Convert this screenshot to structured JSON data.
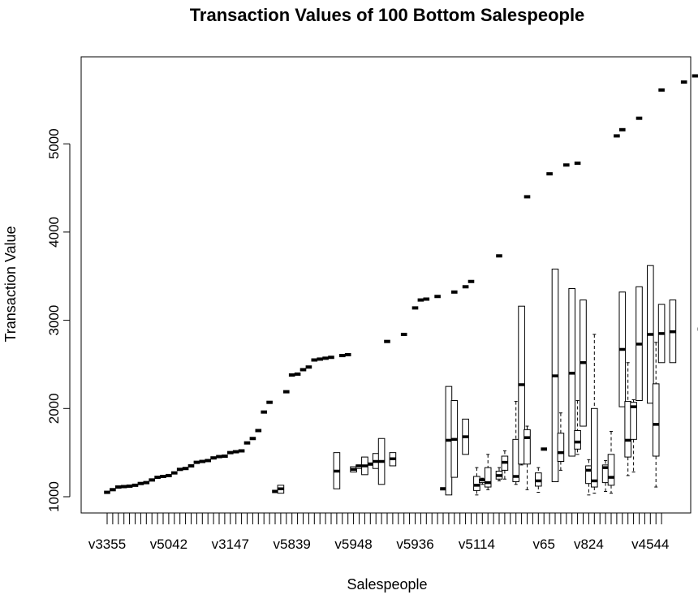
{
  "chart_data": {
    "type": "boxplot",
    "title": "Transaction Values of 100 Bottom Salespeople",
    "xlabel": "Salespeople",
    "ylabel": "Transaction Value",
    "ylim": [
      900,
      5850
    ],
    "yticks": [
      1000,
      2000,
      3000,
      4000,
      5000
    ],
    "n_categories": 100,
    "x_tick_labels": [
      {
        "index": 1,
        "label": "v3355"
      },
      {
        "index": 12,
        "label": "v5042"
      },
      {
        "index": 23,
        "label": "v3147"
      },
      {
        "index": 34,
        "label": "v5839"
      },
      {
        "index": 45,
        "label": "v5948"
      },
      {
        "index": 56,
        "label": "v5936"
      },
      {
        "index": 67,
        "label": "v5114"
      },
      {
        "index": 79,
        "label": "v65"
      },
      {
        "index": 87,
        "label": "v824"
      },
      {
        "index": 98,
        "label": "v4544"
      }
    ],
    "single_points": [
      [
        1,
        1050
      ],
      [
        2,
        1080
      ],
      [
        3,
        1110
      ],
      [
        4,
        1115
      ],
      [
        5,
        1120
      ],
      [
        6,
        1130
      ],
      [
        7,
        1150
      ],
      [
        8,
        1160
      ],
      [
        9,
        1190
      ],
      [
        10,
        1220
      ],
      [
        11,
        1230
      ],
      [
        12,
        1240
      ],
      [
        13,
        1270
      ],
      [
        14,
        1310
      ],
      [
        15,
        1320
      ],
      [
        16,
        1350
      ],
      [
        17,
        1390
      ],
      [
        18,
        1400
      ],
      [
        19,
        1410
      ],
      [
        20,
        1440
      ],
      [
        21,
        1455
      ],
      [
        22,
        1460
      ],
      [
        23,
        1500
      ],
      [
        24,
        1510
      ],
      [
        25,
        1520
      ],
      [
        26,
        1610
      ],
      [
        27,
        1660
      ],
      [
        28,
        1750
      ],
      [
        29,
        1960
      ],
      [
        30,
        2070
      ],
      [
        31,
        1060
      ],
      [
        33,
        2190
      ],
      [
        34,
        2380
      ],
      [
        35,
        2390
      ],
      [
        36,
        2440
      ],
      [
        37,
        2470
      ],
      [
        38,
        2550
      ],
      [
        39,
        2560
      ],
      [
        40,
        2570
      ],
      [
        41,
        2580
      ],
      [
        43,
        2600
      ],
      [
        44,
        2610
      ],
      [
        48,
        1370
      ],
      [
        51,
        2760
      ],
      [
        54,
        2840
      ],
      [
        56,
        3140
      ],
      [
        57,
        3230
      ],
      [
        58,
        3240
      ],
      [
        60,
        3270
      ],
      [
        63,
        3320
      ],
      [
        65,
        3380
      ],
      [
        66,
        3440
      ],
      [
        71,
        3730
      ],
      [
        76,
        4400
      ],
      [
        79,
        1540
      ],
      [
        80,
        4660
      ],
      [
        83,
        4760
      ],
      [
        85,
        4780
      ],
      [
        92,
        5090
      ],
      [
        93,
        5160
      ],
      [
        96,
        5290
      ],
      [
        100,
        5610
      ],
      [
        104,
        5700
      ],
      [
        106,
        5770
      ],
      [
        107,
        2900
      ],
      [
        61,
        1090
      ]
    ],
    "boxes": [
      {
        "x": 32,
        "min": 1040,
        "q1": 1040,
        "median": 1090,
        "q3": 1130,
        "max": 1130
      },
      {
        "x": 42,
        "min": 1090,
        "q1": 1090,
        "median": 1290,
        "q3": 1500,
        "max": 1500
      },
      {
        "x": 45,
        "min": 1280,
        "q1": 1280,
        "median": 1310,
        "q3": 1340,
        "max": 1340
      },
      {
        "x": 46,
        "min": 1320,
        "q1": 1320,
        "median": 1350,
        "q3": 1360,
        "max": 1360
      },
      {
        "x": 47,
        "min": 1250,
        "q1": 1250,
        "median": 1350,
        "q3": 1450,
        "max": 1450
      },
      {
        "x": 49,
        "min": 1320,
        "q1": 1320,
        "median": 1400,
        "q3": 1490,
        "max": 1490
      },
      {
        "x": 50,
        "min": 1140,
        "q1": 1140,
        "median": 1400,
        "q3": 1660,
        "max": 1660
      },
      {
        "x": 52,
        "min": 1350,
        "q1": 1350,
        "median": 1430,
        "q3": 1500,
        "max": 1500
      },
      {
        "x": 62,
        "min": 1020,
        "q1": 1020,
        "median": 1640,
        "q3": 2250,
        "max": 2250
      },
      {
        "x": 63,
        "min": 1220,
        "q1": 1220,
        "median": 1650,
        "q3": 2090,
        "max": 2090
      },
      {
        "x": 65,
        "min": 1480,
        "q1": 1480,
        "median": 1680,
        "q3": 1880,
        "max": 1880
      },
      {
        "x": 67,
        "min": 1020,
        "q1": 1070,
        "median": 1130,
        "q3": 1230,
        "max": 1330
      },
      {
        "x": 68,
        "min": 1140,
        "q1": 1160,
        "median": 1190,
        "q3": 1200,
        "max": 1210
      },
      {
        "x": 69,
        "min": 1080,
        "q1": 1110,
        "median": 1160,
        "q3": 1330,
        "max": 1480
      },
      {
        "x": 71,
        "min": 1180,
        "q1": 1200,
        "median": 1240,
        "q3": 1290,
        "max": 1330
      },
      {
        "x": 72,
        "min": 1200,
        "q1": 1300,
        "median": 1390,
        "q3": 1460,
        "max": 1520
      },
      {
        "x": 74,
        "min": 1140,
        "q1": 1170,
        "median": 1230,
        "q3": 1650,
        "max": 2080
      },
      {
        "x": 75,
        "min": 1360,
        "q1": 1370,
        "median": 2270,
        "q3": 3160,
        "max": 3160
      },
      {
        "x": 76,
        "min": 1080,
        "q1": 1370,
        "median": 1670,
        "q3": 1760,
        "max": 1800
      },
      {
        "x": 78,
        "min": 1050,
        "q1": 1120,
        "median": 1180,
        "q3": 1270,
        "max": 1330
      },
      {
        "x": 81,
        "min": 1170,
        "q1": 1170,
        "median": 2370,
        "q3": 3580,
        "max": 3580
      },
      {
        "x": 82,
        "min": 1300,
        "q1": 1400,
        "median": 1500,
        "q3": 1720,
        "max": 1950
      },
      {
        "x": 84,
        "min": 1460,
        "q1": 1460,
        "median": 2400,
        "q3": 3360,
        "max": 3360
      },
      {
        "x": 85,
        "min": 1480,
        "q1": 1540,
        "median": 1620,
        "q3": 1750,
        "max": 2090
      },
      {
        "x": 86,
        "min": 1800,
        "q1": 1800,
        "median": 2520,
        "q3": 3230,
        "max": 3230
      },
      {
        "x": 87,
        "min": 1020,
        "q1": 1150,
        "median": 1300,
        "q3": 1350,
        "max": 1420
      },
      {
        "x": 88,
        "min": 1040,
        "q1": 1110,
        "median": 1180,
        "q3": 2000,
        "max": 2840
      },
      {
        "x": 90,
        "min": 1060,
        "q1": 1160,
        "median": 1330,
        "q3": 1360,
        "max": 1410
      },
      {
        "x": 91,
        "min": 1040,
        "q1": 1130,
        "median": 1220,
        "q3": 1480,
        "max": 1740
      },
      {
        "x": 93,
        "min": 2020,
        "q1": 2020,
        "median": 2670,
        "q3": 3320,
        "max": 3320
      },
      {
        "x": 94,
        "min": 1240,
        "q1": 1450,
        "median": 1640,
        "q3": 2080,
        "max": 2520
      },
      {
        "x": 95,
        "min": 1280,
        "q1": 1650,
        "median": 2020,
        "q3": 2070,
        "max": 2100
      },
      {
        "x": 96,
        "min": 2090,
        "q1": 2090,
        "median": 2730,
        "q3": 3380,
        "max": 3380
      },
      {
        "x": 98,
        "min": 2060,
        "q1": 2060,
        "median": 2840,
        "q3": 3620,
        "max": 3620
      },
      {
        "x": 99,
        "min": 1110,
        "q1": 1460,
        "median": 1820,
        "q3": 2280,
        "max": 2750
      },
      {
        "x": 100,
        "min": 2520,
        "q1": 2520,
        "median": 2850,
        "q3": 3180,
        "max": 3180
      },
      {
        "x": 102,
        "min": 2520,
        "q1": 2520,
        "median": 2870,
        "q3": 3230,
        "max": 3230
      }
    ],
    "grid": false,
    "legend": "none"
  }
}
